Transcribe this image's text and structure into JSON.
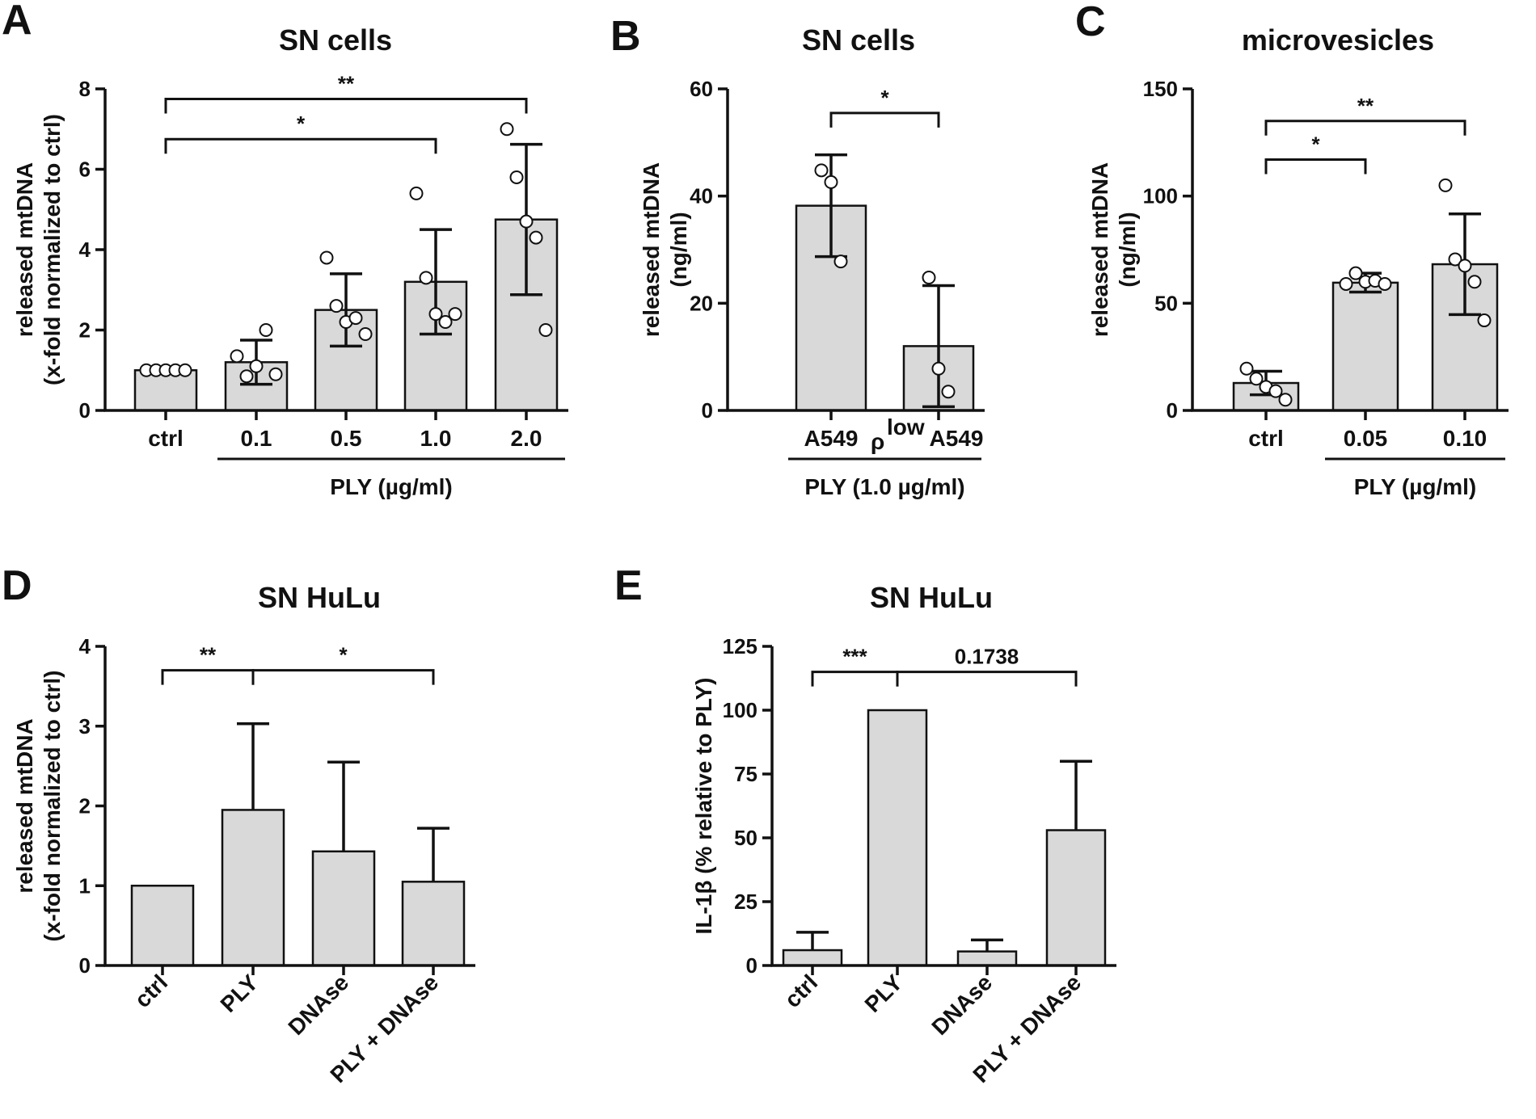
{
  "colors": {
    "bar_fill": "#d9d9d9",
    "stroke": "#111111",
    "point_fill": "#ffffff",
    "text": "#111111"
  },
  "chart_data": [
    {
      "panel": "A",
      "type": "bar",
      "title": "SN cells",
      "ylabel": [
        "released mtDNA",
        "(x-fold normalized to ctrl)"
      ],
      "ylim": [
        0,
        8
      ],
      "yticks": [
        0,
        2,
        4,
        6,
        8
      ],
      "categories": [
        "ctrl",
        "0.1",
        "0.5",
        "1.0",
        "2.0"
      ],
      "values": [
        1.0,
        1.2,
        2.5,
        3.2,
        4.75
      ],
      "errors": [
        0.0,
        0.55,
        0.9,
        1.3,
        1.87
      ],
      "error_mode": "both",
      "points": [
        [
          1,
          1,
          1,
          1,
          1
        ],
        [
          1.35,
          0.85,
          1.1,
          2.0,
          0.9
        ],
        [
          3.8,
          2.6,
          2.2,
          2.3,
          1.9
        ],
        [
          5.4,
          3.3,
          2.4,
          2.2,
          2.4
        ],
        [
          7.0,
          5.8,
          4.7,
          4.3,
          2.0
        ]
      ],
      "rotate_labels": false,
      "group_label": {
        "text": "PLY (µg/ml)",
        "from": 1,
        "to": 4
      },
      "significance": [
        {
          "from": 0,
          "to": 3,
          "label": "*",
          "y": 6.75
        },
        {
          "from": 0,
          "to": 4,
          "label": "**",
          "y": 7.75
        }
      ]
    },
    {
      "panel": "B",
      "type": "bar",
      "title": "SN cells",
      "ylabel": [
        "released mtDNA",
        "(ng/ml)"
      ],
      "ylim": [
        0,
        60
      ],
      "yticks": [
        0,
        20,
        40,
        60
      ],
      "categories": [
        "A549",
        "A549"
      ],
      "category_prefix": [
        null,
        {
          "rho": "ρ",
          "sup": "low"
        }
      ],
      "values": [
        38.2,
        12.0
      ],
      "errors": [
        9.5,
        11.3
      ],
      "error_mode": "both",
      "points": [
        [
          44.8,
          42.6,
          27.8
        ],
        [
          24.8,
          7.8,
          3.5
        ]
      ],
      "rotate_labels": false,
      "group_label": {
        "text": "PLY (1.0 µg/ml)",
        "from": 0,
        "to": 1
      },
      "significance": [
        {
          "from": 0,
          "to": 1,
          "label": "*",
          "y": 55.5
        }
      ]
    },
    {
      "panel": "C",
      "type": "bar",
      "title": "microvesicles",
      "ylabel": [
        "released mtDNA",
        "(ng/ml)"
      ],
      "ylim": [
        0,
        150
      ],
      "yticks": [
        0,
        50,
        100,
        150
      ],
      "categories": [
        "ctrl",
        "0.05",
        "0.10"
      ],
      "values": [
        12.8,
        59.6,
        68.2
      ],
      "errors": [
        5.5,
        4.4,
        23.5
      ],
      "error_mode": "both",
      "points": [
        [
          19.5,
          14.8,
          11.0,
          9.0,
          5.0
        ],
        [
          59.0,
          64.0,
          60.0,
          60.5,
          59.0
        ],
        [
          105.0,
          70.5,
          67.5,
          60.0,
          42.0
        ]
      ],
      "rotate_labels": false,
      "group_label": {
        "text": "PLY (µg/ml)",
        "from": 1,
        "to": 2
      },
      "significance": [
        {
          "from": 0,
          "to": 1,
          "label": "*",
          "y": 117
        },
        {
          "from": 0,
          "to": 2,
          "label": "**",
          "y": 135
        }
      ]
    },
    {
      "panel": "D",
      "type": "bar",
      "title": "SN HuLu",
      "ylabel": [
        "released mtDNA",
        "(x-fold normalized to ctrl)"
      ],
      "ylim": [
        0,
        4
      ],
      "yticks": [
        0,
        1,
        2,
        3,
        4
      ],
      "categories": [
        "ctrl",
        "PLY",
        "DNAse",
        "PLY + DNAse"
      ],
      "values": [
        1.0,
        1.95,
        1.43,
        1.05
      ],
      "errors": [
        0.0,
        1.08,
        1.12,
        0.67
      ],
      "error_mode": "up",
      "points": [],
      "rotate_labels": true,
      "group_label": null,
      "significance": [
        {
          "from": 0,
          "to": 1,
          "label": "**",
          "y": 3.7
        },
        {
          "from": 1,
          "to": 3,
          "label": "*",
          "y": 3.7
        }
      ]
    },
    {
      "panel": "E",
      "type": "bar",
      "title": "SN HuLu",
      "ylabel": [
        "IL-1β (% relative to PLY)"
      ],
      "ylim": [
        0,
        125
      ],
      "yticks": [
        0,
        25,
        50,
        75,
        100,
        125
      ],
      "categories": [
        "ctrl",
        "PLY",
        "DNAse",
        "PLY + DNAse"
      ],
      "values": [
        6.0,
        100.0,
        5.5,
        53.0
      ],
      "errors": [
        7.0,
        0.0,
        4.5,
        27.0
      ],
      "error_mode": "up",
      "points": [],
      "rotate_labels": true,
      "group_label": null,
      "significance": [
        {
          "from": 0,
          "to": 1,
          "label": "***",
          "y": 115
        },
        {
          "from": 1,
          "to": 3,
          "label": "0.1738",
          "y": 115
        }
      ]
    }
  ]
}
